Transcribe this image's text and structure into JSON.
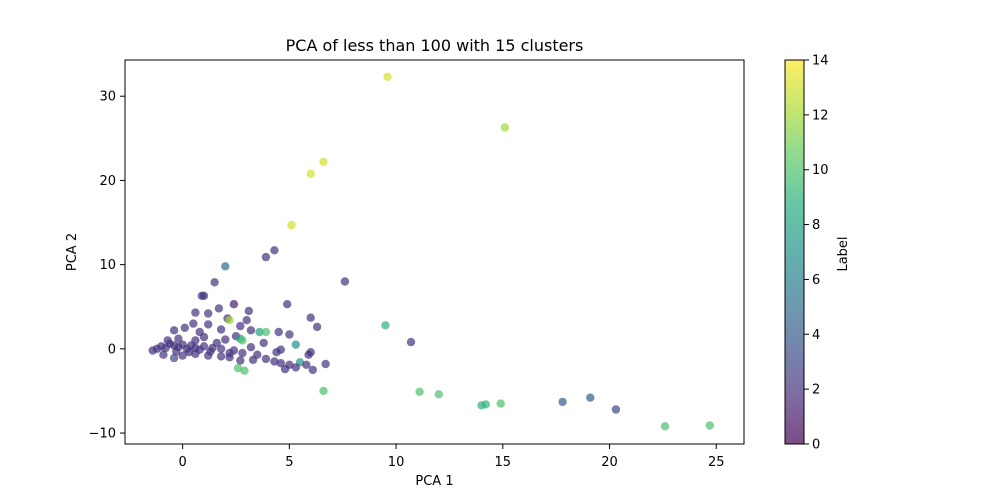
{
  "chart_data": {
    "type": "scatter",
    "title": "PCA of less than 100 with 15 clusters",
    "xlabel": "PCA 1",
    "ylabel": "PCA 2",
    "xlim": [
      -2.7,
      26.3
    ],
    "ylim": [
      -11.3,
      34.3
    ],
    "xticks": [
      0,
      5,
      10,
      15,
      20,
      25
    ],
    "yticks": [
      -10,
      0,
      10,
      20,
      30
    ],
    "grid": false,
    "colorbar": {
      "label": "Label",
      "range": [
        0,
        14
      ],
      "ticks": [
        0,
        2,
        4,
        6,
        8,
        10,
        12,
        14
      ],
      "colormap": "viridis"
    },
    "points": [
      {
        "x": 9.6,
        "y": 32.3,
        "label": 13
      },
      {
        "x": 15.1,
        "y": 26.3,
        "label": 12
      },
      {
        "x": 6.6,
        "y": 22.2,
        "label": 13
      },
      {
        "x": 6.0,
        "y": 20.8,
        "label": 13
      },
      {
        "x": 5.1,
        "y": 14.7,
        "label": 13
      },
      {
        "x": 4.3,
        "y": 11.7,
        "label": 2
      },
      {
        "x": 3.9,
        "y": 10.9,
        "label": 2
      },
      {
        "x": 2.0,
        "y": 9.8,
        "label": 5
      },
      {
        "x": 7.6,
        "y": 8.0,
        "label": 2
      },
      {
        "x": 1.5,
        "y": 7.9,
        "label": 2
      },
      {
        "x": 0.9,
        "y": 6.3,
        "label": 2
      },
      {
        "x": 1.0,
        "y": 6.3,
        "label": 2
      },
      {
        "x": 2.4,
        "y": 5.3,
        "label": 1
      },
      {
        "x": 4.9,
        "y": 5.3,
        "label": 2
      },
      {
        "x": 1.7,
        "y": 4.8,
        "label": 2
      },
      {
        "x": 3.1,
        "y": 4.5,
        "label": 2
      },
      {
        "x": 0.6,
        "y": 4.3,
        "label": 2
      },
      {
        "x": 1.2,
        "y": 4.2,
        "label": 2
      },
      {
        "x": 6.0,
        "y": 3.7,
        "label": 2
      },
      {
        "x": 2.1,
        "y": 3.6,
        "label": 2
      },
      {
        "x": 2.2,
        "y": 3.4,
        "label": 12
      },
      {
        "x": 3.0,
        "y": 3.4,
        "label": 2
      },
      {
        "x": 0.5,
        "y": 3.0,
        "label": 2
      },
      {
        "x": 1.2,
        "y": 2.9,
        "label": 2
      },
      {
        "x": 9.5,
        "y": 2.8,
        "label": 9
      },
      {
        "x": 2.7,
        "y": 2.7,
        "label": 2
      },
      {
        "x": 6.3,
        "y": 2.6,
        "label": 2
      },
      {
        "x": 0.1,
        "y": 2.5,
        "label": 2
      },
      {
        "x": 1.8,
        "y": 2.3,
        "label": 2
      },
      {
        "x": 3.2,
        "y": 2.2,
        "label": 2
      },
      {
        "x": -0.4,
        "y": 2.2,
        "label": 2
      },
      {
        "x": 0.8,
        "y": 2.0,
        "label": 2
      },
      {
        "x": 3.6,
        "y": 2.0,
        "label": 8
      },
      {
        "x": 3.9,
        "y": 2.0,
        "label": 10
      },
      {
        "x": 4.5,
        "y": 2.0,
        "label": 2
      },
      {
        "x": 5.0,
        "y": 1.7,
        "label": 2
      },
      {
        "x": 2.5,
        "y": 1.5,
        "label": 2
      },
      {
        "x": 1.0,
        "y": 1.4,
        "label": 2
      },
      {
        "x": 2.7,
        "y": 1.2,
        "label": 8
      },
      {
        "x": 2.8,
        "y": 1.0,
        "label": 10
      },
      {
        "x": 2.0,
        "y": 1.1,
        "label": 2
      },
      {
        "x": 0.6,
        "y": 1.0,
        "label": 2
      },
      {
        "x": 10.7,
        "y": 0.8,
        "label": 2
      },
      {
        "x": 3.8,
        "y": 0.7,
        "label": 2
      },
      {
        "x": 5.3,
        "y": 0.5,
        "label": 7
      },
      {
        "x": 1.6,
        "y": 0.7,
        "label": 2
      },
      {
        "x": -0.2,
        "y": 1.2,
        "label": 2
      },
      {
        "x": -0.7,
        "y": 1.0,
        "label": 2
      },
      {
        "x": 3.2,
        "y": 0.2,
        "label": 2
      },
      {
        "x": 4.6,
        "y": -0.1,
        "label": 2
      },
      {
        "x": 6.0,
        "y": -0.4,
        "label": 2
      },
      {
        "x": 5.9,
        "y": -0.7,
        "label": 2
      },
      {
        "x": 4.4,
        "y": -0.4,
        "label": 2
      },
      {
        "x": 1.3,
        "y": -0.3,
        "label": 2
      },
      {
        "x": 2.2,
        "y": -0.5,
        "label": 2
      },
      {
        "x": 2.8,
        "y": -0.5,
        "label": 2
      },
      {
        "x": 3.5,
        "y": -0.7,
        "label": 2
      },
      {
        "x": 3.9,
        "y": -1.2,
        "label": 2
      },
      {
        "x": 4.3,
        "y": -1.5,
        "label": 2
      },
      {
        "x": 4.6,
        "y": -1.7,
        "label": 2
      },
      {
        "x": 5.0,
        "y": -1.9,
        "label": 2
      },
      {
        "x": 5.5,
        "y": -1.6,
        "label": 7
      },
      {
        "x": 5.8,
        "y": -1.9,
        "label": 2
      },
      {
        "x": 6.7,
        "y": -1.8,
        "label": 2
      },
      {
        "x": 6.1,
        "y": -2.5,
        "label": 2
      },
      {
        "x": 5.3,
        "y": -2.2,
        "label": 2
      },
      {
        "x": 4.8,
        "y": -2.4,
        "label": 2
      },
      {
        "x": 3.3,
        "y": -1.3,
        "label": 2
      },
      {
        "x": 2.7,
        "y": -1.4,
        "label": 2
      },
      {
        "x": 2.6,
        "y": -2.3,
        "label": 10
      },
      {
        "x": 2.9,
        "y": -2.6,
        "label": 10
      },
      {
        "x": 2.2,
        "y": -1.0,
        "label": 2
      },
      {
        "x": 1.8,
        "y": -0.9,
        "label": 2
      },
      {
        "x": 1.2,
        "y": -0.8,
        "label": 2
      },
      {
        "x": 0.6,
        "y": -0.6,
        "label": 2
      },
      {
        "x": 0.0,
        "y": -0.8,
        "label": 2
      },
      {
        "x": -0.4,
        "y": -1.1,
        "label": 3
      },
      {
        "x": -0.9,
        "y": -0.7,
        "label": 2
      },
      {
        "x": -1.4,
        "y": -0.2,
        "label": 2
      },
      {
        "x": -1.2,
        "y": 0.0,
        "label": 2
      },
      {
        "x": -1.0,
        "y": 0.3,
        "label": 2
      },
      {
        "x": -0.8,
        "y": 0.1,
        "label": 2
      },
      {
        "x": -0.6,
        "y": 0.6,
        "label": 2
      },
      {
        "x": -0.4,
        "y": 0.4,
        "label": 2
      },
      {
        "x": -0.2,
        "y": 0.2,
        "label": 2
      },
      {
        "x": 0.0,
        "y": 0.5,
        "label": 2
      },
      {
        "x": 0.2,
        "y": 0.0,
        "label": 2
      },
      {
        "x": 0.4,
        "y": 0.4,
        "label": 2
      },
      {
        "x": 0.6,
        "y": 0.1,
        "label": 2
      },
      {
        "x": 0.8,
        "y": -0.1,
        "label": 2
      },
      {
        "x": 1.0,
        "y": 0.3,
        "label": 2
      },
      {
        "x": 1.4,
        "y": 0.1,
        "label": 2
      },
      {
        "x": 1.8,
        "y": 0.0,
        "label": 2
      },
      {
        "x": 2.4,
        "y": -0.2,
        "label": 2
      },
      {
        "x": -0.3,
        "y": -0.3,
        "label": 2
      },
      {
        "x": 0.3,
        "y": -0.4,
        "label": 2
      },
      {
        "x": 6.6,
        "y": -5.0,
        "label": 10
      },
      {
        "x": 11.1,
        "y": -5.1,
        "label": 10
      },
      {
        "x": 12.0,
        "y": -5.4,
        "label": 10
      },
      {
        "x": 14.0,
        "y": -6.7,
        "label": 9
      },
      {
        "x": 14.2,
        "y": -6.6,
        "label": 9
      },
      {
        "x": 14.9,
        "y": -6.5,
        "label": 10
      },
      {
        "x": 17.8,
        "y": -6.3,
        "label": 4
      },
      {
        "x": 19.1,
        "y": -5.8,
        "label": 4
      },
      {
        "x": 20.3,
        "y": -7.2,
        "label": 3
      },
      {
        "x": 22.6,
        "y": -9.2,
        "label": 10
      },
      {
        "x": 24.7,
        "y": -9.1,
        "label": 10
      }
    ]
  }
}
